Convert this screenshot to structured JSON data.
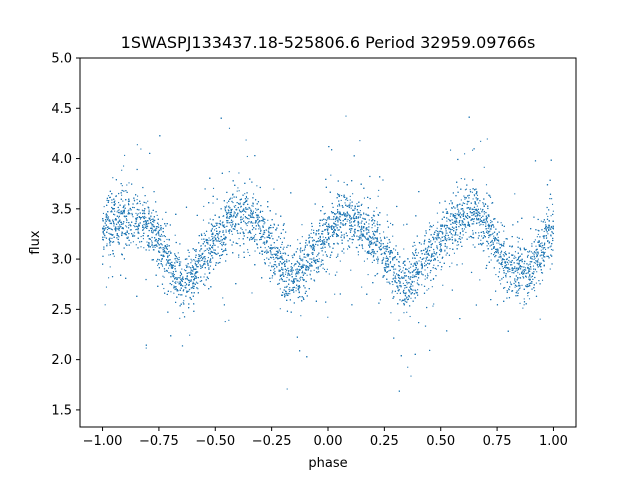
{
  "chart_data": {
    "type": "scatter",
    "title": "1SWASPJ133437.18-525806.6 Period 32959.09766s",
    "xlabel": "phase",
    "ylabel": "flux",
    "xlim": [
      -1.1,
      1.1
    ],
    "ylim": [
      1.33,
      5.0
    ],
    "x_ticks": [
      -1.0,
      -0.75,
      -0.5,
      -0.25,
      0.0,
      0.25,
      0.5,
      0.75,
      1.0
    ],
    "x_tick_labels": [
      "−1.00",
      "−0.75",
      "−0.50",
      "−0.25",
      "0.00",
      "0.25",
      "0.50",
      "0.75",
      "1.00"
    ],
    "y_ticks": [
      1.5,
      2.0,
      2.5,
      3.0,
      3.5,
      4.0,
      4.5,
      5.0
    ],
    "y_tick_labels": [
      "1.5",
      "2.0",
      "2.5",
      "3.0",
      "3.5",
      "4.0",
      "4.5",
      "5.0"
    ],
    "grid": false,
    "point_color": "#1f77b4",
    "series": [
      {
        "x": [
          -1.0,
          -0.9,
          -0.8,
          -0.75,
          -0.7,
          -0.65,
          -0.6,
          -0.5,
          -0.4,
          -0.35,
          -0.3,
          -0.25,
          -0.2,
          -0.15,
          -0.1,
          0.0,
          0.05,
          0.1,
          0.15,
          0.2,
          0.3,
          0.35,
          0.4,
          0.5,
          0.6,
          0.65,
          0.7,
          0.75,
          0.8,
          0.85,
          0.9,
          1.0
        ],
        "y": [
          3.3,
          3.42,
          3.35,
          3.2,
          2.95,
          2.75,
          2.85,
          3.2,
          3.45,
          3.4,
          3.3,
          3.1,
          2.9,
          2.78,
          2.9,
          3.3,
          3.4,
          3.4,
          3.3,
          3.2,
          2.9,
          2.72,
          2.9,
          3.2,
          3.45,
          3.47,
          3.35,
          3.1,
          2.95,
          2.85,
          2.9,
          3.3
        ]
      }
    ]
  }
}
